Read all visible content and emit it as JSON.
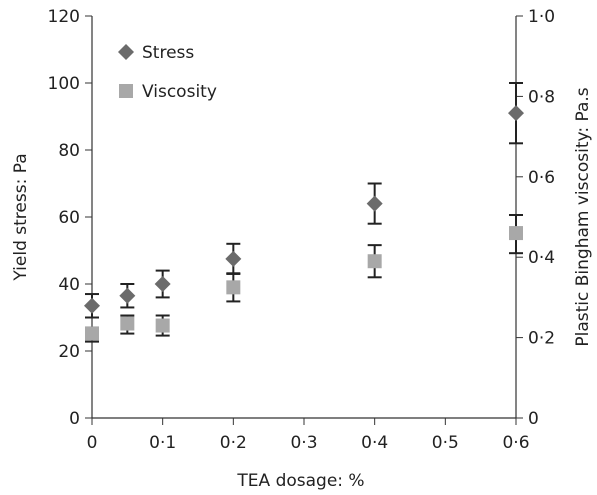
{
  "chart_data": {
    "type": "scatter",
    "xlabel": "TEA dosage: %",
    "ylabel": "Yield stress: Pa",
    "ylabel_right": "Plastic Bingham viscosity: Pa.s",
    "xlim": [
      0,
      0.6
    ],
    "ylim": [
      0,
      120
    ],
    "ylim_right": [
      0,
      1.0
    ],
    "x_ticks": [
      "0",
      "0·1",
      "0·2",
      "0·3",
      "0·4",
      "0·5",
      "0·6"
    ],
    "y_ticks": [
      "0",
      "20",
      "40",
      "60",
      "80",
      "100",
      "120"
    ],
    "y_right_ticks": [
      "0",
      "0·2",
      "0·4",
      "0·6",
      "0·8",
      "1·0"
    ],
    "legend_position": "top-left",
    "grid": false,
    "series": [
      {
        "name": "Stress",
        "axis": "left",
        "marker": "diamond",
        "color": "#6b6b6b",
        "points": [
          {
            "x": 0,
            "y": 33.5,
            "err_low": 30,
            "err_high": 37
          },
          {
            "x": 0.05,
            "y": 36.5,
            "err_low": 33,
            "err_high": 40
          },
          {
            "x": 0.1,
            "y": 40,
            "err_low": 36,
            "err_high": 44
          },
          {
            "x": 0.2,
            "y": 47.5,
            "err_low": 43,
            "err_high": 52
          },
          {
            "x": 0.4,
            "y": 64,
            "err_low": 58,
            "err_high": 70
          },
          {
            "x": 0.6,
            "y": 91,
            "err_low": 82,
            "err_high": 100
          }
        ]
      },
      {
        "name": "Viscosity",
        "axis": "right",
        "marker": "square",
        "color": "#a8a8a8",
        "points": [
          {
            "x": 0,
            "y": 0.21,
            "err_low": 0.19,
            "err_high": 0.225
          },
          {
            "x": 0.05,
            "y": 0.235,
            "err_low": 0.21,
            "err_high": 0.255
          },
          {
            "x": 0.1,
            "y": 0.23,
            "err_low": 0.205,
            "err_high": 0.255
          },
          {
            "x": 0.2,
            "y": 0.325,
            "err_low": 0.29,
            "err_high": 0.36
          },
          {
            "x": 0.4,
            "y": 0.39,
            "err_low": 0.35,
            "err_high": 0.43
          },
          {
            "x": 0.6,
            "y": 0.46,
            "err_low": 0.41,
            "err_high": 0.505
          }
        ]
      }
    ]
  }
}
